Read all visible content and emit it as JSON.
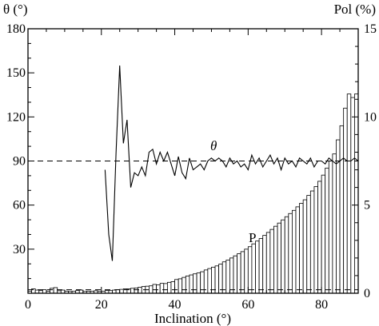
{
  "chart_data": {
    "type": "bar",
    "xlabel": "Inclination (°)",
    "ylabel_left": "θ (°)",
    "ylabel_right": "Pol (%)",
    "xlim": [
      0,
      90
    ],
    "ylim_left": [
      0,
      180
    ],
    "ylim_right": [
      0,
      15
    ],
    "x_ticks": [
      "0",
      "20",
      "40",
      "60",
      "80"
    ],
    "y_left_ticks": [
      "30",
      "60",
      "90",
      "120",
      "150",
      "180"
    ],
    "y_right_ticks": [
      "0",
      "5",
      "10",
      "15"
    ],
    "grid": false,
    "reference_line_left": 90,
    "reference_line_right": 0.2,
    "annotations": {
      "theta_label": "θ",
      "pol_label": "P"
    },
    "series": [
      {
        "kind": "histogram",
        "axis": "right",
        "bin_width": 1,
        "x": [
          1,
          2,
          3,
          4,
          5,
          6,
          7,
          8,
          9,
          10,
          11,
          12,
          13,
          14,
          15,
          16,
          17,
          18,
          19,
          20,
          21,
          22,
          23,
          24,
          25,
          26,
          27,
          28,
          29,
          30,
          31,
          32,
          33,
          34,
          35,
          36,
          37,
          38,
          39,
          40,
          41,
          42,
          43,
          44,
          45,
          46,
          47,
          48,
          49,
          50,
          51,
          52,
          53,
          54,
          55,
          56,
          57,
          58,
          59,
          60,
          61,
          62,
          63,
          64,
          65,
          66,
          67,
          68,
          69,
          70,
          71,
          72,
          73,
          74,
          75,
          76,
          77,
          78,
          79,
          80,
          81,
          82,
          83,
          84,
          85,
          86,
          87,
          88,
          89,
          90
        ],
        "values": [
          0.12,
          0.25,
          0.18,
          0.15,
          0.2,
          0.12,
          0.28,
          0.32,
          0.14,
          0.18,
          0.12,
          0.1,
          0.12,
          0.15,
          0.18,
          0.1,
          0.12,
          0.12,
          0.14,
          0.1,
          0.12,
          0.15,
          0.15,
          0.18,
          0.2,
          0.22,
          0.25,
          0.25,
          0.28,
          0.3,
          0.34,
          0.38,
          0.4,
          0.42,
          0.5,
          0.48,
          0.56,
          0.55,
          0.62,
          0.66,
          0.78,
          0.82,
          0.9,
          0.98,
          1.04,
          1.1,
          1.15,
          1.22,
          1.32,
          1.4,
          1.48,
          1.55,
          1.65,
          1.78,
          1.88,
          2.0,
          2.12,
          2.24,
          2.36,
          2.5,
          2.64,
          2.8,
          2.96,
          3.1,
          3.28,
          3.45,
          3.62,
          3.8,
          3.98,
          4.16,
          4.34,
          4.52,
          4.7,
          4.9,
          5.1,
          5.3,
          5.55,
          5.8,
          6.05,
          6.35,
          6.7,
          7.1,
          7.5,
          7.9,
          8.7,
          9.5,
          10.5,
          11.3,
          11.1,
          11.3
        ]
      },
      {
        "kind": "line",
        "axis": "left",
        "x": [
          21,
          22,
          23,
          24,
          25,
          26,
          27,
          28,
          29,
          30,
          31,
          32,
          33,
          34,
          35,
          36,
          37,
          38,
          39,
          40,
          41,
          42,
          43,
          44,
          45,
          46,
          47,
          48,
          49,
          50,
          51,
          52,
          53,
          54,
          55,
          56,
          57,
          58,
          59,
          60,
          61,
          62,
          63,
          64,
          65,
          66,
          67,
          68,
          69,
          70,
          71,
          72,
          73,
          74,
          75,
          76,
          77,
          78,
          79,
          80,
          81,
          82,
          83,
          84,
          85,
          86,
          87,
          88,
          89,
          90
        ],
        "values": [
          84,
          40,
          22,
          95,
          155,
          102,
          118,
          72,
          82,
          80,
          86,
          80,
          96,
          98,
          88,
          96,
          90,
          96,
          88,
          80,
          93,
          82,
          78,
          92,
          84,
          86,
          88,
          84,
          90,
          92,
          90,
          92,
          90,
          86,
          92,
          88,
          90,
          86,
          88,
          84,
          94,
          88,
          92,
          86,
          90,
          94,
          88,
          92,
          84,
          92,
          88,
          90,
          86,
          92,
          90,
          88,
          92,
          86,
          90,
          90,
          88,
          92,
          90,
          88,
          90,
          92,
          90,
          90,
          92,
          90
        ]
      }
    ]
  }
}
